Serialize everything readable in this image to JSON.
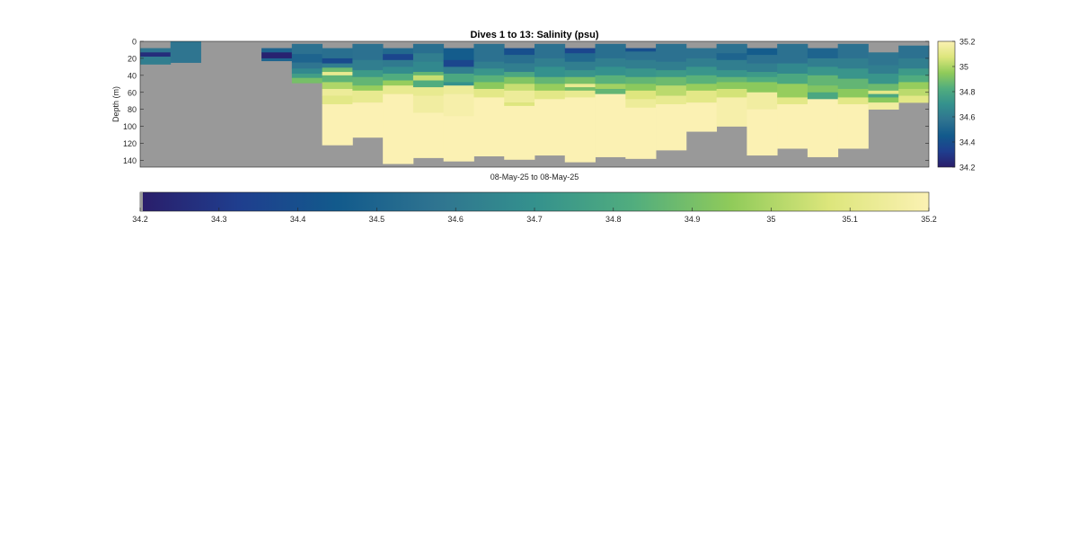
{
  "chart_data": {
    "type": "heatmap",
    "title": "Dives 1 to 13: Salinity (psu)",
    "xlabel": "08-May-25 to 08-May-25",
    "ylabel": "Depth (m)",
    "y_ticks": [
      0,
      20,
      40,
      60,
      80,
      100,
      120,
      140
    ],
    "ylim": [
      0,
      148
    ],
    "y_reversed": true,
    "color_range": [
      34.2,
      35.2
    ],
    "no_data_color": "#999999",
    "colormap": [
      "#2a1d6a",
      "#1f3e8e",
      "#125a8c",
      "#2f7490",
      "#34918d",
      "#51ad7e",
      "#90cb5a",
      "#dde67c",
      "#fbf1b3"
    ],
    "right_colorbar_ticks": [
      34.2,
      34.4,
      34.6,
      34.8,
      35,
      35.2
    ],
    "right_colorbar_tick_labels": [
      "34.2",
      "34.4",
      "34.6",
      "34.8",
      "35",
      "35.2"
    ],
    "bottom_colorbar_ticks": [
      34.2,
      34.3,
      34.4,
      34.5,
      34.6,
      34.7,
      34.8,
      34.9,
      35,
      35.1,
      35.2
    ],
    "bottom_colorbar_tick_labels": [
      "34.2",
      "34.3",
      "34.4",
      "34.5",
      "34.6",
      "34.7",
      "34.8",
      "34.9",
      "35",
      "35.1",
      "35.2"
    ],
    "profile_count": 26,
    "profiles": [
      {
        "top": 8,
        "bottom": 27,
        "layers": [
          [
            8,
            13,
            34.58
          ],
          [
            13,
            18,
            34.26
          ],
          [
            18,
            27,
            34.62
          ]
        ]
      },
      {
        "top": 0,
        "bottom": 25,
        "layers": [
          [
            0,
            25,
            34.58
          ]
        ]
      },
      null,
      null,
      {
        "top": 8,
        "bottom": 23,
        "layers": [
          [
            8,
            13,
            34.5
          ],
          [
            13,
            20,
            34.22
          ],
          [
            20,
            23,
            34.5
          ]
        ]
      },
      {
        "top": 3,
        "bottom": 49,
        "layers": [
          [
            3,
            15,
            34.56
          ],
          [
            15,
            25,
            34.5
          ],
          [
            25,
            32,
            34.58
          ],
          [
            32,
            38,
            34.66
          ],
          [
            38,
            43,
            34.76
          ],
          [
            43,
            49,
            34.9
          ]
        ]
      },
      {
        "top": 8,
        "bottom": 122,
        "layers": [
          [
            8,
            20,
            34.55
          ],
          [
            20,
            26,
            34.38
          ],
          [
            26,
            31,
            34.62
          ],
          [
            31,
            36,
            34.88
          ],
          [
            36,
            40,
            35.12
          ],
          [
            40,
            48,
            34.85
          ],
          [
            48,
            56,
            35.0
          ],
          [
            56,
            64,
            35.14
          ],
          [
            64,
            74,
            35.1
          ],
          [
            74,
            122,
            35.2
          ]
        ]
      },
      {
        "top": 3,
        "bottom": 113,
        "layers": [
          [
            3,
            22,
            34.56
          ],
          [
            22,
            34,
            34.62
          ],
          [
            34,
            42,
            34.74
          ],
          [
            42,
            52,
            34.86
          ],
          [
            52,
            58,
            34.96
          ],
          [
            58,
            72,
            35.12
          ],
          [
            72,
            113,
            35.2
          ]
        ]
      },
      {
        "top": 8,
        "bottom": 144,
        "layers": [
          [
            8,
            15,
            34.52
          ],
          [
            15,
            22,
            34.36
          ],
          [
            22,
            30,
            34.6
          ],
          [
            30,
            38,
            34.68
          ],
          [
            38,
            46,
            34.82
          ],
          [
            46,
            52,
            34.96
          ],
          [
            52,
            62,
            35.12
          ],
          [
            62,
            144,
            35.2
          ]
        ]
      },
      {
        "top": 3,
        "bottom": 137,
        "layers": [
          [
            3,
            14,
            34.55
          ],
          [
            14,
            24,
            34.62
          ],
          [
            24,
            36,
            34.66
          ],
          [
            36,
            40,
            34.86
          ],
          [
            40,
            46,
            35.04
          ],
          [
            46,
            54,
            34.82
          ],
          [
            54,
            64,
            35.12
          ],
          [
            64,
            84,
            35.16
          ],
          [
            84,
            137,
            35.2
          ]
        ]
      },
      {
        "top": 8,
        "bottom": 141,
        "layers": [
          [
            8,
            22,
            34.46
          ],
          [
            22,
            30,
            34.36
          ],
          [
            30,
            38,
            34.62
          ],
          [
            38,
            48,
            34.8
          ],
          [
            48,
            52,
            34.7
          ],
          [
            52,
            62,
            35.14
          ],
          [
            62,
            88,
            35.18
          ],
          [
            88,
            141,
            35.2
          ]
        ]
      },
      {
        "top": 3,
        "bottom": 135,
        "layers": [
          [
            3,
            24,
            34.56
          ],
          [
            24,
            32,
            34.62
          ],
          [
            32,
            40,
            34.72
          ],
          [
            40,
            48,
            34.84
          ],
          [
            48,
            56,
            34.94
          ],
          [
            56,
            66,
            35.1
          ],
          [
            66,
            135,
            35.2
          ]
        ]
      },
      {
        "top": 8,
        "bottom": 139,
        "layers": [
          [
            8,
            16,
            34.4
          ],
          [
            16,
            26,
            34.55
          ],
          [
            26,
            36,
            34.62
          ],
          [
            36,
            42,
            34.8
          ],
          [
            42,
            50,
            34.92
          ],
          [
            50,
            58,
            35.04
          ],
          [
            58,
            72,
            35.14
          ],
          [
            72,
            76,
            35.08
          ],
          [
            76,
            139,
            35.2
          ]
        ]
      },
      {
        "top": 3,
        "bottom": 134,
        "layers": [
          [
            3,
            20,
            34.56
          ],
          [
            20,
            30,
            34.62
          ],
          [
            30,
            42,
            34.7
          ],
          [
            42,
            50,
            34.86
          ],
          [
            50,
            58,
            34.96
          ],
          [
            58,
            68,
            35.1
          ],
          [
            68,
            134,
            35.2
          ]
        ]
      },
      {
        "top": 8,
        "bottom": 142,
        "layers": [
          [
            8,
            14,
            34.36
          ],
          [
            14,
            24,
            34.52
          ],
          [
            24,
            34,
            34.62
          ],
          [
            34,
            42,
            34.72
          ],
          [
            42,
            50,
            34.9
          ],
          [
            50,
            54,
            35.12
          ],
          [
            54,
            58,
            34.9
          ],
          [
            58,
            66,
            35.12
          ],
          [
            66,
            142,
            35.2
          ]
        ]
      },
      {
        "top": 3,
        "bottom": 136,
        "layers": [
          [
            3,
            20,
            34.55
          ],
          [
            20,
            30,
            34.62
          ],
          [
            30,
            40,
            34.7
          ],
          [
            40,
            50,
            34.84
          ],
          [
            50,
            56,
            34.98
          ],
          [
            56,
            62,
            34.86
          ],
          [
            62,
            136,
            35.2
          ]
        ]
      },
      {
        "top": 8,
        "bottom": 138,
        "layers": [
          [
            8,
            12,
            34.4
          ],
          [
            12,
            22,
            34.56
          ],
          [
            22,
            32,
            34.62
          ],
          [
            32,
            42,
            34.72
          ],
          [
            42,
            50,
            34.86
          ],
          [
            50,
            58,
            34.94
          ],
          [
            58,
            68,
            35.08
          ],
          [
            68,
            78,
            35.14
          ],
          [
            78,
            138,
            35.2
          ]
        ]
      },
      {
        "top": 3,
        "bottom": 128,
        "layers": [
          [
            3,
            24,
            34.56
          ],
          [
            24,
            34,
            34.62
          ],
          [
            34,
            42,
            34.74
          ],
          [
            42,
            52,
            34.88
          ],
          [
            52,
            64,
            35.02
          ],
          [
            64,
            74,
            35.12
          ],
          [
            74,
            128,
            35.2
          ]
        ]
      },
      {
        "top": 8,
        "bottom": 106,
        "layers": [
          [
            8,
            20,
            34.56
          ],
          [
            20,
            30,
            34.62
          ],
          [
            30,
            40,
            34.72
          ],
          [
            40,
            50,
            34.84
          ],
          [
            50,
            58,
            34.96
          ],
          [
            58,
            72,
            35.1
          ],
          [
            72,
            106,
            35.2
          ]
        ]
      },
      {
        "top": 3,
        "bottom": 100,
        "layers": [
          [
            3,
            14,
            34.56
          ],
          [
            14,
            22,
            34.5
          ],
          [
            22,
            34,
            34.62
          ],
          [
            34,
            42,
            34.72
          ],
          [
            42,
            48,
            34.86
          ],
          [
            48,
            56,
            34.94
          ],
          [
            56,
            66,
            35.06
          ],
          [
            66,
            100,
            35.18
          ]
        ]
      },
      {
        "top": 8,
        "bottom": 134,
        "layers": [
          [
            8,
            16,
            34.46
          ],
          [
            16,
            26,
            34.56
          ],
          [
            26,
            36,
            34.62
          ],
          [
            36,
            42,
            34.74
          ],
          [
            42,
            48,
            34.82
          ],
          [
            48,
            60,
            34.94
          ],
          [
            60,
            80,
            35.16
          ],
          [
            80,
            134,
            35.2
          ]
        ]
      },
      {
        "top": 3,
        "bottom": 126,
        "layers": [
          [
            3,
            26,
            34.56
          ],
          [
            26,
            38,
            34.66
          ],
          [
            38,
            50,
            34.8
          ],
          [
            50,
            66,
            34.96
          ],
          [
            66,
            74,
            35.1
          ],
          [
            74,
            126,
            35.2
          ]
        ]
      },
      {
        "top": 8,
        "bottom": 136,
        "layers": [
          [
            8,
            20,
            34.5
          ],
          [
            20,
            30,
            34.62
          ],
          [
            30,
            40,
            34.72
          ],
          [
            40,
            52,
            34.86
          ],
          [
            52,
            60,
            34.92
          ],
          [
            60,
            68,
            34.8
          ],
          [
            68,
            136,
            35.2
          ]
        ]
      },
      {
        "top": 3,
        "bottom": 126,
        "layers": [
          [
            3,
            20,
            34.56
          ],
          [
            20,
            32,
            34.62
          ],
          [
            32,
            44,
            34.72
          ],
          [
            44,
            56,
            34.86
          ],
          [
            56,
            66,
            34.94
          ],
          [
            66,
            74,
            35.1
          ],
          [
            74,
            126,
            35.2
          ]
        ]
      },
      {
        "top": 13,
        "bottom": 80,
        "layers": [
          [
            13,
            28,
            34.58
          ],
          [
            28,
            38,
            34.62
          ],
          [
            38,
            50,
            34.72
          ],
          [
            50,
            58,
            34.88
          ],
          [
            58,
            62,
            35.1
          ],
          [
            62,
            66,
            34.8
          ],
          [
            66,
            72,
            34.94
          ],
          [
            72,
            80,
            35.16
          ]
        ]
      },
      {
        "top": 5,
        "bottom": 72,
        "layers": [
          [
            5,
            20,
            34.56
          ],
          [
            20,
            32,
            34.62
          ],
          [
            32,
            40,
            34.74
          ],
          [
            40,
            48,
            34.82
          ],
          [
            48,
            56,
            34.96
          ],
          [
            56,
            64,
            35.02
          ],
          [
            64,
            72,
            35.1
          ]
        ]
      }
    ]
  }
}
